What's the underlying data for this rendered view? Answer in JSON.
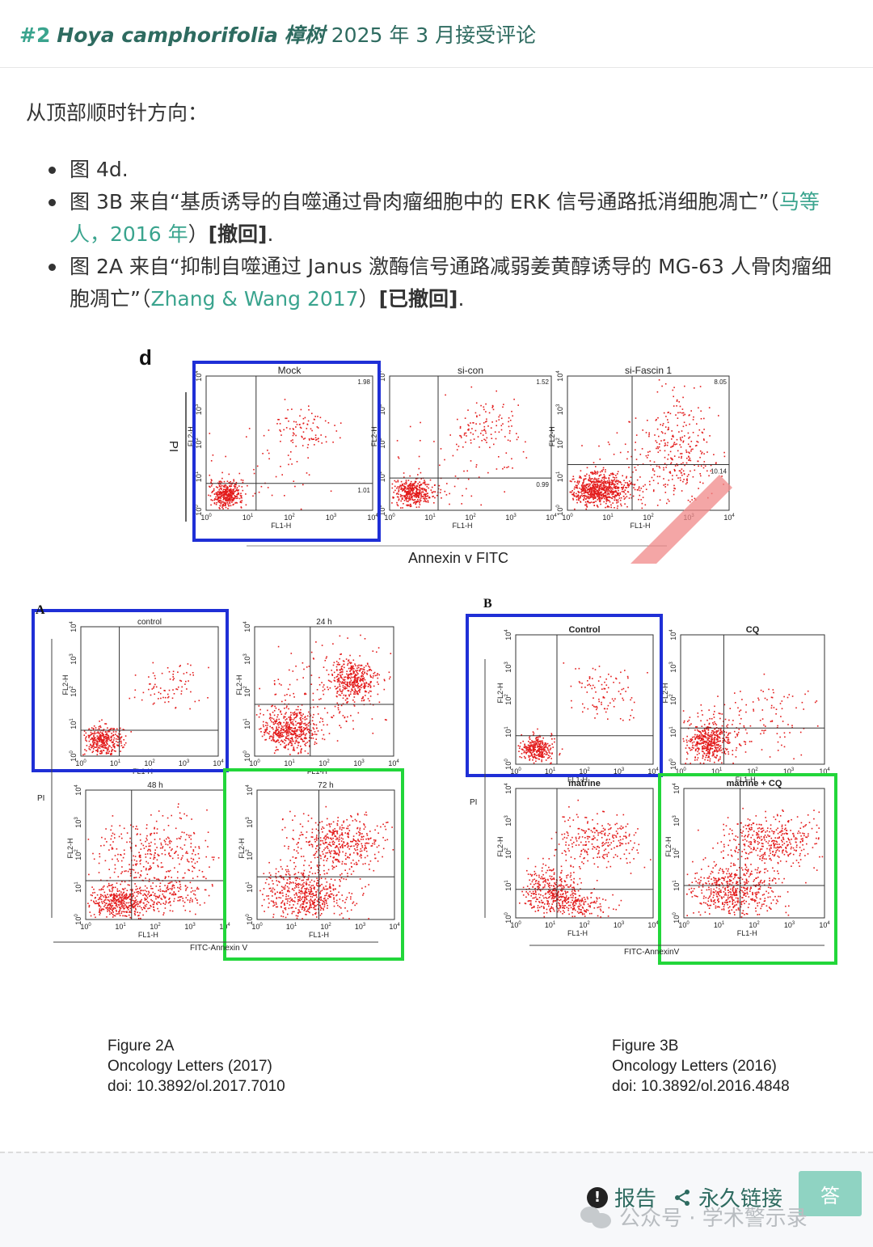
{
  "header": {
    "number": "#2",
    "species": "Hoya camphorifolia",
    "species_cn": "樟树",
    "rest": " 2025 年 3 月接受评论"
  },
  "content": {
    "intro": "从顶部顺时针方向：",
    "items": [
      {
        "text": "图 4d."
      },
      {
        "pre": "图 3B 来自“基质诱导的自噬通过骨肉瘤细胞中的 ERK 信号通路抵消细胞凋亡”（",
        "link": "马等人，2016 年",
        "mid": "）",
        "bold": "[撤回]",
        "post": "."
      },
      {
        "pre": "图 2A 来自“抑制自噬通过 Janus 激酶信号通路减弱姜黄醇诱导的 MG-63 人骨肉瘤细胞凋亡”（",
        "link": "Zhang & Wang 2017",
        "mid": "）",
        "bold": "[已撤回]",
        "post": "."
      }
    ]
  },
  "figure": {
    "panel_d": {
      "letter": "d",
      "y_axis": "PI",
      "x_axis": "Annexin v FITC",
      "plots": [
        {
          "title": "Mock",
          "upper": "1.98",
          "lower": "1.01"
        },
        {
          "title": "si-con",
          "upper": "1.52",
          "lower": "0.99"
        },
        {
          "title": "si-Fascin 1",
          "upper": "8.05",
          "lower": "10.14"
        }
      ]
    },
    "panel_a": {
      "letter": "A",
      "y_axis": "PI",
      "x_axis": "FITC-Annexin V",
      "plots": [
        "control",
        "24 h",
        "48 h",
        "72 h"
      ]
    },
    "panel_b": {
      "letter": "B",
      "y_axis": "PI",
      "x_axis": "FITC-AnnexinV",
      "plots": [
        "Control",
        "CQ",
        "matrine",
        "matrine + CQ"
      ]
    },
    "axis_labels": {
      "y": "FL2-H",
      "x": "FL1-H"
    },
    "tick_labels": [
      "10",
      "10",
      "10",
      "10",
      "10"
    ],
    "tick_exp": [
      "0",
      "1",
      "2",
      "3",
      "4"
    ],
    "captions": {
      "a": [
        "Figure 2A",
        "Oncology Letters (2017)",
        "doi: 10.3892/ol.2017.7010"
      ],
      "b": [
        "Figure 3B",
        "Oncology Letters (2016)",
        "doi: 10.3892/ol.2016.4848"
      ]
    },
    "colors": {
      "dots": "#e31b1b",
      "blue_box": "#1f2fd6",
      "green_box": "#22d63a"
    }
  },
  "footer": {
    "report": "报告",
    "permalink": "永久链接",
    "answer": "答",
    "watermark": "公众号 · 学术警示录"
  }
}
